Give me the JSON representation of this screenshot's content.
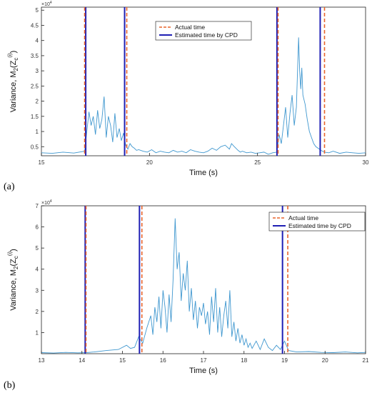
{
  "panel_labels": [
    "(a)",
    "(b)"
  ],
  "legend_entries": [
    {
      "label": "Actual time",
      "color": "#e8642c",
      "style": "dashed"
    },
    {
      "label": "Estimated time by CPD",
      "color": "#1f1fb4",
      "style": "solid"
    }
  ],
  "colors": {
    "signal": "#3f97cf",
    "actual": "#e8642c",
    "estimated": "#1f1fb4"
  },
  "chart_data": [
    {
      "type": "line",
      "panel": "(a)",
      "xlabel": "Time (s)",
      "ylabel": "Variance, M2(Zc(i))",
      "y_multiplier": "x 10^4",
      "xlim": [
        15,
        30
      ],
      "ylim": [
        2000,
        51000
      ],
      "xticks": [
        15,
        20,
        25,
        30
      ],
      "yticks": [
        5000,
        10000,
        15000,
        20000,
        25000,
        30000,
        35000,
        40000,
        45000,
        50000
      ],
      "ytick_labels": [
        "0.5",
        "1",
        "1.5",
        "2",
        "2.5",
        "3",
        "3.5",
        "4",
        "4.5",
        "5"
      ],
      "legend_position": "top-center",
      "actual_times": [
        17.0,
        18.95,
        25.95,
        28.1
      ],
      "estimated_times": [
        17.05,
        18.85,
        25.9,
        27.9
      ],
      "series": [
        {
          "name": "Variance",
          "x": [
            15,
            15.5,
            16,
            16.5,
            17,
            17.1,
            17.2,
            17.3,
            17.4,
            17.5,
            17.6,
            17.7,
            17.8,
            17.9,
            18,
            18.1,
            18.2,
            18.3,
            18.4,
            18.5,
            18.6,
            18.7,
            18.8,
            18.9,
            19,
            19.1,
            19.2,
            19.3,
            19.4,
            19.5,
            19.7,
            19.9,
            20.1,
            20.3,
            20.5,
            20.7,
            20.9,
            21.1,
            21.3,
            21.5,
            21.7,
            21.9,
            22.1,
            22.3,
            22.5,
            22.7,
            22.9,
            23.1,
            23.3,
            23.5,
            23.7,
            23.8,
            23.9,
            24.0,
            24.1,
            24.2,
            24.3,
            24.5,
            24.7,
            24.9,
            25.1,
            25.3,
            25.5,
            25.7,
            25.9,
            26.0,
            26.1,
            26.2,
            26.3,
            26.4,
            26.5,
            26.6,
            26.7,
            26.8,
            26.9,
            26.95,
            27.0,
            27.05,
            27.1,
            27.2,
            27.3,
            27.4,
            27.5,
            27.6,
            27.7,
            27.8,
            27.9,
            28.0,
            28.1,
            28.3,
            28.5,
            28.8,
            29.1,
            29.4,
            29.7,
            30
          ],
          "y": [
            3000,
            2800,
            3200,
            2900,
            3500,
            10000,
            16500,
            12000,
            15000,
            9000,
            17000,
            11000,
            14000,
            21500,
            8000,
            15000,
            12000,
            6500,
            16000,
            8000,
            11000,
            7000,
            9500,
            5500,
            4200,
            6000,
            5000,
            4500,
            3800,
            4000,
            3500,
            3200,
            4000,
            3000,
            3500,
            3200,
            3000,
            3800,
            3200,
            3500,
            3000,
            4000,
            3500,
            3200,
            3000,
            3500,
            4500,
            3800,
            5000,
            5500,
            4200,
            6000,
            5200,
            4500,
            3800,
            3200,
            3500,
            3000,
            3200,
            2800,
            3000,
            3200,
            2500,
            3000,
            3200,
            9000,
            6000,
            12000,
            18000,
            8000,
            16000,
            22000,
            12000,
            18000,
            41000,
            30000,
            24000,
            31000,
            22000,
            19000,
            14000,
            10000,
            8000,
            6000,
            5000,
            4500,
            4000,
            3500,
            3200,
            3000,
            3500,
            2800,
            3200,
            3000,
            2800,
            3000
          ]
        }
      ]
    },
    {
      "type": "line",
      "panel": "(b)",
      "xlabel": "Time (s)",
      "ylabel": "Variance, M2(Zc(i))",
      "y_multiplier": "x 10^4",
      "xlim": [
        13,
        21
      ],
      "ylim": [
        0,
        70000
      ],
      "xticks": [
        13,
        14,
        15,
        16,
        17,
        18,
        19,
        20,
        21
      ],
      "yticks": [
        10000,
        20000,
        30000,
        40000,
        50000,
        60000,
        70000
      ],
      "ytick_labels": [
        "1",
        "2",
        "3",
        "4",
        "5",
        "6",
        "7"
      ],
      "legend_position": "top-right",
      "actual_times": [
        14.1,
        15.48,
        19.08
      ],
      "estimated_times": [
        14.08,
        15.42,
        18.95
      ],
      "series": [
        {
          "name": "Variance",
          "x": [
            13,
            13.3,
            13.6,
            13.9,
            14.1,
            14.3,
            14.6,
            14.9,
            15.1,
            15.2,
            15.3,
            15.4,
            15.5,
            15.6,
            15.7,
            15.75,
            15.8,
            15.85,
            15.9,
            15.95,
            16.0,
            16.05,
            16.1,
            16.15,
            16.2,
            16.25,
            16.3,
            16.35,
            16.4,
            16.45,
            16.5,
            16.55,
            16.6,
            16.65,
            16.7,
            16.75,
            16.8,
            16.85,
            16.9,
            16.95,
            17.0,
            17.05,
            17.1,
            17.15,
            17.2,
            17.25,
            17.3,
            17.35,
            17.4,
            17.45,
            17.5,
            17.55,
            17.6,
            17.65,
            17.7,
            17.75,
            17.8,
            17.85,
            17.9,
            17.95,
            18.0,
            18.05,
            18.1,
            18.15,
            18.2,
            18.3,
            18.4,
            18.5,
            18.6,
            18.7,
            18.8,
            18.9,
            19.0,
            19.1,
            19.3,
            19.6,
            19.9,
            20.2,
            20.5,
            20.8,
            21
          ],
          "y": [
            500,
            300,
            600,
            400,
            500,
            800,
            1500,
            2000,
            4000,
            2500,
            3000,
            8000,
            5000,
            12000,
            18000,
            9000,
            22000,
            15000,
            27000,
            12000,
            30000,
            22000,
            10000,
            28000,
            15000,
            35000,
            64000,
            40000,
            48000,
            25000,
            38000,
            30000,
            44000,
            20000,
            31000,
            16000,
            25000,
            12000,
            22000,
            18000,
            24000,
            14000,
            20000,
            9000,
            27000,
            15000,
            31000,
            10000,
            22000,
            8000,
            18000,
            25000,
            12000,
            30000,
            8000,
            15000,
            6000,
            12000,
            5000,
            9000,
            4000,
            7000,
            3000,
            5000,
            2500,
            6000,
            2000,
            7000,
            3000,
            1500,
            4000,
            2000,
            6000,
            1500,
            800,
            1000,
            600,
            500,
            800,
            400,
            600
          ]
        }
      ]
    }
  ]
}
